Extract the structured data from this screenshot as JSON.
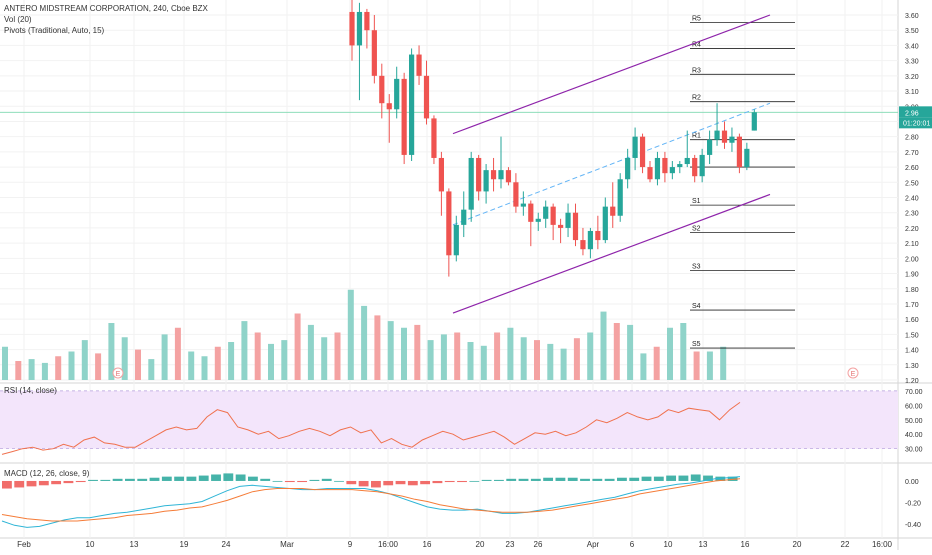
{
  "header": {
    "symbol": "ANTERO MIDSTREAM CORPORATION, 240, Cboe BZX",
    "volume": "Vol (20)",
    "pivots": "Pivots (Traditional, Auto, 15)"
  },
  "rsi_label": "RSI (14, close)",
  "macd_label": "MACD (12, 26, close, 9)",
  "price_tag": "2.96",
  "countdown_tag": "01:20:01",
  "event_markers": [
    "E",
    "E"
  ],
  "colors": {
    "up": "#26a69a",
    "down": "#ef5350",
    "vol_up": "#8fd3c9",
    "vol_down": "#f4a2a2",
    "channel": "#8e24aa",
    "midline": "#64b5f6",
    "rsi_line": "#f0714e",
    "rsi_band": "#f3e5fb",
    "macd_line": "#2fb5d6",
    "signal_line": "#f57c38"
  },
  "chart_data": [
    {
      "type": "candlestick",
      "title": "ANTERO MIDSTREAM CORPORATION, 240, Cboe BZX",
      "x_tick_labels": [
        "Feb",
        "10",
        "13",
        "19",
        "24",
        "Mar",
        "9",
        "16:00",
        "16",
        "20",
        "23",
        "26",
        "Apr",
        "6",
        "10",
        "13",
        "16",
        "20",
        "22",
        "16:00"
      ],
      "y_tick_labels": [
        "3.60",
        "3.50",
        "3.40",
        "3.30",
        "3.20",
        "3.10",
        "3.00",
        "2.90",
        "2.80",
        "2.70",
        "2.60",
        "2.50",
        "2.40",
        "2.30",
        "2.20",
        "2.10",
        "2.00",
        "1.90",
        "1.80",
        "1.70",
        "1.60",
        "1.50",
        "1.40",
        "1.30",
        "1.20"
      ],
      "ylim": [
        1.2,
        3.6
      ],
      "last_price": 2.96,
      "pivots": [
        {
          "label": "R5",
          "value": 3.55
        },
        {
          "label": "R4",
          "value": 3.38
        },
        {
          "label": "R3",
          "value": 3.21
        },
        {
          "label": "R2",
          "value": 3.03
        },
        {
          "label": "R1",
          "value": 2.78
        },
        {
          "label": "P",
          "value": 2.6
        },
        {
          "label": "S1",
          "value": 2.35
        },
        {
          "label": "S2",
          "value": 2.17
        },
        {
          "label": "S3",
          "value": 1.92
        },
        {
          "label": "S4",
          "value": 1.66
        },
        {
          "label": "S5",
          "value": 1.41
        }
      ],
      "candles": [
        [
          3.62,
          3.72,
          3.3,
          3.4
        ],
        [
          3.4,
          3.68,
          3.04,
          3.62
        ],
        [
          3.62,
          3.64,
          3.38,
          3.5
        ],
        [
          3.5,
          3.6,
          3.15,
          3.2
        ],
        [
          3.2,
          3.28,
          2.92,
          3.02
        ],
        [
          3.02,
          3.08,
          2.76,
          2.98
        ],
        [
          2.98,
          3.26,
          2.92,
          3.18
        ],
        [
          3.18,
          3.22,
          2.62,
          2.68
        ],
        [
          2.68,
          3.38,
          2.64,
          3.34
        ],
        [
          3.34,
          3.4,
          3.14,
          3.2
        ],
        [
          3.2,
          3.3,
          2.88,
          2.92
        ],
        [
          2.92,
          2.94,
          2.62,
          2.66
        ],
        [
          2.66,
          2.7,
          2.28,
          2.44
        ],
        [
          2.44,
          2.46,
          1.88,
          2.02
        ],
        [
          2.02,
          2.28,
          1.98,
          2.22
        ],
        [
          2.22,
          2.44,
          2.14,
          2.32
        ],
        [
          2.32,
          2.7,
          2.24,
          2.66
        ],
        [
          2.66,
          2.68,
          2.38,
          2.44
        ],
        [
          2.44,
          2.62,
          2.36,
          2.58
        ],
        [
          2.58,
          2.66,
          2.44,
          2.52
        ],
        [
          2.52,
          2.8,
          2.46,
          2.58
        ],
        [
          2.58,
          2.6,
          2.48,
          2.5
        ],
        [
          2.5,
          2.56,
          2.3,
          2.34
        ],
        [
          2.34,
          2.44,
          2.28,
          2.36
        ],
        [
          2.36,
          2.38,
          2.08,
          2.24
        ],
        [
          2.24,
          2.3,
          2.18,
          2.26
        ],
        [
          2.26,
          2.38,
          2.2,
          2.34
        ],
        [
          2.34,
          2.36,
          2.12,
          2.22
        ],
        [
          2.22,
          2.26,
          2.1,
          2.2
        ],
        [
          2.2,
          2.36,
          2.14,
          2.3
        ],
        [
          2.3,
          2.36,
          2.08,
          2.12
        ],
        [
          2.12,
          2.2,
          2.02,
          2.06
        ],
        [
          2.06,
          2.2,
          2.0,
          2.18
        ],
        [
          2.18,
          2.28,
          2.06,
          2.12
        ],
        [
          2.12,
          2.4,
          2.1,
          2.34
        ],
        [
          2.34,
          2.5,
          2.2,
          2.28
        ],
        [
          2.28,
          2.56,
          2.24,
          2.52
        ],
        [
          2.52,
          2.72,
          2.46,
          2.66
        ],
        [
          2.66,
          2.86,
          2.58,
          2.8
        ],
        [
          2.8,
          2.82,
          2.56,
          2.6
        ],
        [
          2.6,
          2.64,
          2.5,
          2.52
        ],
        [
          2.52,
          2.7,
          2.48,
          2.66
        ],
        [
          2.66,
          2.7,
          2.5,
          2.56
        ],
        [
          2.56,
          2.64,
          2.52,
          2.6
        ],
        [
          2.6,
          2.64,
          2.56,
          2.62
        ],
        [
          2.62,
          2.84,
          2.6,
          2.66
        ],
        [
          2.66,
          2.68,
          2.5,
          2.54
        ],
        [
          2.54,
          2.72,
          2.5,
          2.68
        ],
        [
          2.68,
          2.84,
          2.62,
          2.78
        ],
        [
          2.78,
          3.02,
          2.74,
          2.84
        ],
        [
          2.84,
          2.9,
          2.72,
          2.76
        ],
        [
          2.76,
          2.86,
          2.7,
          2.8
        ],
        [
          2.8,
          2.82,
          2.56,
          2.6
        ],
        [
          2.6,
          2.76,
          2.58,
          2.72
        ],
        [
          2.84,
          2.98,
          2.84,
          2.96
        ]
      ],
      "volume_scale": [
        0,
        1.0
      ],
      "volumes": [
        0.35,
        0.2,
        0.22,
        0.18,
        0.25,
        0.3,
        0.42,
        0.28,
        0.6,
        0.45,
        0.32,
        0.22,
        0.48,
        0.55,
        0.3,
        0.25,
        0.35,
        0.4,
        0.62,
        0.5,
        0.38,
        0.42,
        0.7,
        0.58,
        0.45,
        0.5,
        0.95,
        0.78,
        0.68,
        0.62,
        0.55,
        0.58,
        0.42,
        0.48,
        0.5,
        0.4,
        0.36,
        0.5,
        0.55,
        0.45,
        0.42,
        0.38,
        0.33,
        0.44,
        0.5,
        0.72,
        0.6,
        0.58,
        0.28,
        0.35,
        0.55,
        0.6,
        0.3,
        0.3,
        0.35
      ]
    },
    {
      "type": "line",
      "title": "RSI (14, close)",
      "y_tick_labels": [
        "70.00",
        "60.00",
        "50.00",
        "40.00",
        "30.00"
      ],
      "ylim": [
        27,
        72
      ],
      "bands": [
        30,
        70
      ],
      "series": [
        {
          "name": "RSI (14, close)",
          "values": [
            26,
            28,
            30,
            31,
            29,
            30,
            33,
            31,
            36,
            38,
            34,
            33,
            31,
            31,
            35,
            39,
            43,
            45,
            43,
            44,
            52,
            57,
            55,
            45,
            43,
            40,
            42,
            37,
            39,
            42,
            44,
            42,
            39,
            43,
            45,
            41,
            43,
            34,
            37,
            33,
            31,
            36,
            39,
            42,
            40,
            36,
            38,
            40,
            42,
            38,
            33,
            37,
            41,
            40,
            42,
            39,
            41,
            45,
            50,
            48,
            51,
            55,
            52,
            50,
            52,
            57,
            55,
            58,
            57,
            56,
            50,
            57,
            62
          ]
        }
      ]
    },
    {
      "type": "bar+line",
      "title": "MACD (12, 26, close, 9)",
      "y_tick_labels": [
        "0.00",
        "-0.20",
        "-0.40"
      ],
      "ylim": [
        -0.5,
        0.12
      ],
      "histogram": [
        -0.07,
        -0.06,
        -0.05,
        -0.04,
        -0.03,
        -0.02,
        -0.01,
        0.01,
        0.01,
        0.02,
        0.02,
        0.02,
        0.03,
        0.04,
        0.04,
        0.04,
        0.05,
        0.06,
        0.07,
        0.06,
        0.04,
        0.02,
        0.0,
        -0.01,
        -0.01,
        0.01,
        0.02,
        0.0,
        -0.03,
        -0.05,
        -0.06,
        -0.04,
        -0.03,
        -0.04,
        -0.03,
        -0.02,
        -0.01,
        -0.01,
        0.0,
        0.01,
        0.01,
        0.02,
        0.02,
        0.02,
        0.03,
        0.03,
        0.03,
        0.02,
        0.02,
        0.02,
        0.03,
        0.03,
        0.04,
        0.04,
        0.05,
        0.05,
        0.06,
        0.05,
        0.04,
        0.04
      ],
      "series": [
        {
          "name": "MACD",
          "values": [
            -0.37,
            -0.41,
            -0.43,
            -0.42,
            -0.39,
            -0.36,
            -0.34,
            -0.34,
            -0.32,
            -0.3,
            -0.29,
            -0.27,
            -0.25,
            -0.23,
            -0.22,
            -0.21,
            -0.19,
            -0.14,
            -0.09,
            -0.05,
            -0.04,
            -0.05,
            -0.06,
            -0.07,
            -0.08,
            -0.08,
            -0.07,
            -0.07,
            -0.07,
            -0.07,
            -0.09,
            -0.12,
            -0.16,
            -0.2,
            -0.24,
            -0.26,
            -0.27,
            -0.27,
            -0.26,
            -0.28,
            -0.3,
            -0.3,
            -0.29,
            -0.27,
            -0.25,
            -0.23,
            -0.21,
            -0.19,
            -0.17,
            -0.15,
            -0.12,
            -0.09,
            -0.07,
            -0.05,
            -0.03,
            -0.02,
            0.0,
            0.02,
            0.03,
            0.04
          ]
        },
        {
          "name": "Signal",
          "values": [
            -0.31,
            -0.33,
            -0.35,
            -0.36,
            -0.37,
            -0.37,
            -0.37,
            -0.36,
            -0.35,
            -0.34,
            -0.32,
            -0.31,
            -0.3,
            -0.28,
            -0.27,
            -0.25,
            -0.24,
            -0.21,
            -0.18,
            -0.14,
            -0.1,
            -0.08,
            -0.07,
            -0.07,
            -0.07,
            -0.08,
            -0.08,
            -0.08,
            -0.08,
            -0.09,
            -0.1,
            -0.12,
            -0.14,
            -0.17,
            -0.19,
            -0.22,
            -0.24,
            -0.26,
            -0.27,
            -0.28,
            -0.29,
            -0.29,
            -0.29,
            -0.28,
            -0.27,
            -0.25,
            -0.23,
            -0.21,
            -0.19,
            -0.17,
            -0.15,
            -0.12,
            -0.1,
            -0.08,
            -0.06,
            -0.04,
            -0.02,
            0.0,
            0.01,
            0.02
          ]
        }
      ]
    }
  ]
}
